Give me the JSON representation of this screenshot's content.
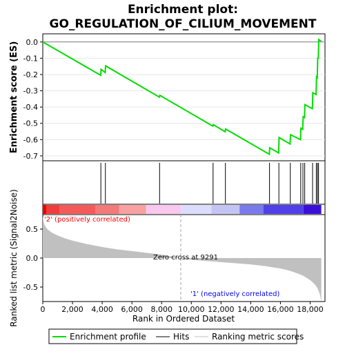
{
  "chart_data": {
    "type": "line",
    "title_line1": "Enrichment plot:",
    "title_line2": "GO_REGULATION_OF_CILIUM_MOVEMENT",
    "xlabel": "Rank in Ordered Dataset",
    "xlim": [
      0,
      19000
    ],
    "x_ticks": [
      0,
      2000,
      4000,
      6000,
      8000,
      10000,
      12000,
      14000,
      16000,
      18000
    ],
    "x_tick_labels": [
      "0",
      "2,000",
      "4,000",
      "6,000",
      "8,000",
      "10,000",
      "12,000",
      "14,000",
      "16,000",
      "18,000"
    ],
    "max_rank": 18750,
    "es_panel": {
      "ylabel": "Enrichment score (ES)",
      "ylim": [
        -0.73,
        0.05
      ],
      "y_ticks": [
        0.0,
        -0.1,
        -0.2,
        -0.3,
        -0.4,
        -0.5,
        -0.6,
        -0.7
      ],
      "y_tick_labels": [
        "0.0",
        "-0.1",
        "-0.2",
        "-0.3",
        "-0.4",
        "-0.5",
        "-0.6",
        "-0.7"
      ],
      "series_name": "Enrichment profile",
      "color": "#00dd00",
      "x": [
        0,
        3900,
        3930,
        4200,
        4230,
        7850,
        7880,
        11450,
        11480,
        12280,
        12310,
        15250,
        15280,
        15880,
        15910,
        16650,
        16680,
        17350,
        17380,
        17500,
        17530,
        17620,
        17650,
        18150,
        18180,
        18400,
        18430,
        18480,
        18510,
        18550,
        18580,
        18750
      ],
      "y": [
        0.0,
        -0.205,
        -0.168,
        -0.188,
        -0.147,
        -0.339,
        -0.328,
        -0.517,
        -0.508,
        -0.552,
        -0.535,
        -0.69,
        -0.65,
        -0.682,
        -0.587,
        -0.627,
        -0.57,
        -0.6,
        -0.53,
        -0.537,
        -0.46,
        -0.465,
        -0.385,
        -0.41,
        -0.312,
        -0.323,
        -0.215,
        -0.22,
        -0.1,
        -0.1,
        0.015,
        0.003
      ]
    },
    "hits": {
      "series_name": "Hits",
      "positions": [
        3910,
        4215,
        7865,
        11465,
        12295,
        15265,
        15895,
        16665,
        17365,
        17515,
        17635,
        18165,
        18415,
        18495,
        18565
      ]
    },
    "ranked_panel": {
      "ylabel": "Ranked list metric (Signal2Noise)",
      "ylim": [
        -0.75,
        0.75
      ],
      "y_ticks": [
        0.5,
        0.0,
        -0.5
      ],
      "y_tick_labels": [
        "0.5",
        "0.0",
        "-0.5"
      ],
      "series_name": "Ranking metric scores",
      "fill_color": "#c0c0c0",
      "x": [
        0,
        100,
        300,
        600,
        1000,
        1500,
        2000,
        3000,
        4000,
        5000,
        6000,
        7000,
        8000,
        9291,
        10000,
        11000,
        12000,
        13000,
        14000,
        15000,
        15500,
        16000,
        16500,
        17000,
        17500,
        18000,
        18300,
        18500,
        18650,
        18750
      ],
      "y": [
        0.72,
        0.58,
        0.5,
        0.44,
        0.39,
        0.34,
        0.3,
        0.24,
        0.19,
        0.15,
        0.12,
        0.09,
        0.06,
        0.0,
        -0.03,
        -0.05,
        -0.07,
        -0.09,
        -0.11,
        -0.14,
        -0.16,
        -0.18,
        -0.21,
        -0.25,
        -0.3,
        -0.38,
        -0.45,
        -0.52,
        -0.62,
        -0.75
      ]
    },
    "zero_cross_label": "Zero cross at 9291",
    "zero_cross_rank": 9291,
    "pos_label": "'2' (positively correlated)",
    "neg_label": "'1' (negatively correlated)",
    "pos_color": "#ff0000",
    "neg_color": "#0000ff",
    "color_bar": {
      "boundaries": [
        0,
        250,
        1150,
        3550,
        5150,
        6950,
        9300,
        11350,
        13250,
        14850,
        17550,
        18750
      ],
      "colors": [
        "#ee0000",
        "#f03c3c",
        "#f45a5a",
        "#f27a7a",
        "#f9a0a0",
        "#f8c8ee",
        "#dcdcff",
        "#c4c4f4",
        "#7a7aee",
        "#5040e8",
        "#3a10d8"
      ]
    },
    "legend": [
      "Enrichment profile",
      "Hits",
      "Ranking metric scores"
    ]
  }
}
